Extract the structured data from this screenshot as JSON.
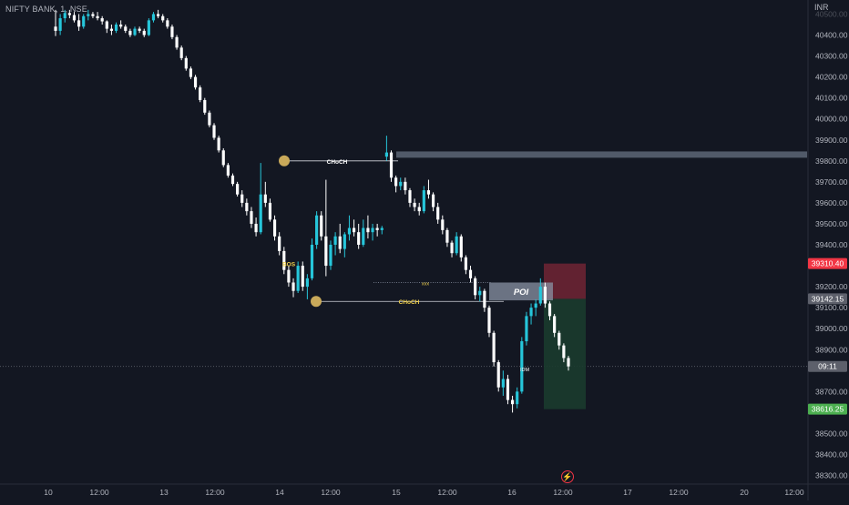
{
  "header": {
    "symbol": "NIFTY BANK, 1, NSE",
    "currency": "INR"
  },
  "colors": {
    "background": "#131722",
    "candle_up": "#26c6da",
    "candle_down": "#ffffff",
    "axis_text": "#b2b5be",
    "grid": "#2a2e39",
    "zone": "#5d6675",
    "stop_zone": "#6b2433",
    "target_zone": "#1b3b2e",
    "annotation_text": "#f0d04a",
    "pivot_marker": "#c9a95a",
    "price_red": "#f23645",
    "price_green": "#4caf50",
    "price_gray": "#5d606b"
  },
  "icons": {
    "bolt": "lightning-icon"
  },
  "chart_data": {
    "type": "candlestick",
    "title": "NIFTY BANK, 1, NSE",
    "ylabel": "INR",
    "ylim": [
      38250,
      40520
    ],
    "y_ticks": [
      40400,
      40300,
      40200,
      40100,
      40000,
      39900,
      39800,
      39700,
      39600,
      39500,
      39400,
      39200,
      39100,
      39000,
      38900,
      38700,
      38500,
      38400,
      38300
    ],
    "x_labels": [
      "10",
      "12:00",
      "13",
      "12:00",
      "14",
      "12:00",
      "15",
      "12:00",
      "16",
      "12:00",
      "17",
      "12:00",
      "20",
      "12:00"
    ],
    "grid": false,
    "candles": [
      {
        "o": 40440,
        "h": 40520,
        "l": 40395,
        "c": 40420
      },
      {
        "o": 40420,
        "h": 40500,
        "l": 40400,
        "c": 40480
      },
      {
        "o": 40480,
        "h": 40520,
        "l": 40460,
        "c": 40505
      },
      {
        "o": 40505,
        "h": 40520,
        "l": 40480,
        "c": 40495
      },
      {
        "o": 40495,
        "h": 40510,
        "l": 40460,
        "c": 40470
      },
      {
        "o": 40470,
        "h": 40500,
        "l": 40420,
        "c": 40440
      },
      {
        "o": 40440,
        "h": 40500,
        "l": 40430,
        "c": 40490
      },
      {
        "o": 40490,
        "h": 40520,
        "l": 40470,
        "c": 40500
      },
      {
        "o": 40500,
        "h": 40510,
        "l": 40480,
        "c": 40490
      },
      {
        "o": 40490,
        "h": 40510,
        "l": 40470,
        "c": 40480
      },
      {
        "o": 40480,
        "h": 40490,
        "l": 40450,
        "c": 40465
      },
      {
        "o": 40465,
        "h": 40470,
        "l": 40410,
        "c": 40430
      },
      {
        "o": 40430,
        "h": 40450,
        "l": 40400,
        "c": 40420
      },
      {
        "o": 40420,
        "h": 40460,
        "l": 40410,
        "c": 40450
      },
      {
        "o": 40450,
        "h": 40470,
        "l": 40430,
        "c": 40440
      },
      {
        "o": 40440,
        "h": 40450,
        "l": 40410,
        "c": 40420
      },
      {
        "o": 40420,
        "h": 40430,
        "l": 40390,
        "c": 40400
      },
      {
        "o": 40400,
        "h": 40440,
        "l": 40395,
        "c": 40430
      },
      {
        "o": 40430,
        "h": 40440,
        "l": 40410,
        "c": 40420
      },
      {
        "o": 40420,
        "h": 40430,
        "l": 40390,
        "c": 40400
      },
      {
        "o": 40400,
        "h": 40480,
        "l": 40395,
        "c": 40470
      },
      {
        "o": 40470,
        "h": 40510,
        "l": 40460,
        "c": 40500
      },
      {
        "o": 40500,
        "h": 40520,
        "l": 40480,
        "c": 40490
      },
      {
        "o": 40490,
        "h": 40500,
        "l": 40460,
        "c": 40470
      },
      {
        "o": 40470,
        "h": 40480,
        "l": 40430,
        "c": 40440
      },
      {
        "o": 40440,
        "h": 40450,
        "l": 40380,
        "c": 40390
      },
      {
        "o": 40390,
        "h": 40400,
        "l": 40330,
        "c": 40340
      },
      {
        "o": 40340,
        "h": 40350,
        "l": 40280,
        "c": 40290
      },
      {
        "o": 40290,
        "h": 40300,
        "l": 40230,
        "c": 40240
      },
      {
        "o": 40240,
        "h": 40250,
        "l": 40190,
        "c": 40200
      },
      {
        "o": 40200,
        "h": 40210,
        "l": 40140,
        "c": 40150
      },
      {
        "o": 40150,
        "h": 40160,
        "l": 40080,
        "c": 40090
      },
      {
        "o": 40090,
        "h": 40100,
        "l": 40020,
        "c": 40030
      },
      {
        "o": 40030,
        "h": 40040,
        "l": 39960,
        "c": 39970
      },
      {
        "o": 39970,
        "h": 39980,
        "l": 39900,
        "c": 39910
      },
      {
        "o": 39910,
        "h": 39920,
        "l": 39840,
        "c": 39850
      },
      {
        "o": 39850,
        "h": 39860,
        "l": 39770,
        "c": 39780
      },
      {
        "o": 39780,
        "h": 39790,
        "l": 39720,
        "c": 39730
      },
      {
        "o": 39730,
        "h": 39740,
        "l": 39680,
        "c": 39690
      },
      {
        "o": 39690,
        "h": 39700,
        "l": 39630,
        "c": 39640
      },
      {
        "o": 39640,
        "h": 39660,
        "l": 39580,
        "c": 39600
      },
      {
        "o": 39600,
        "h": 39620,
        "l": 39540,
        "c": 39560
      },
      {
        "o": 39560,
        "h": 39580,
        "l": 39480,
        "c": 39500
      },
      {
        "o": 39500,
        "h": 39530,
        "l": 39440,
        "c": 39460
      },
      {
        "o": 39460,
        "h": 39790,
        "l": 39450,
        "c": 39640
      },
      {
        "o": 39640,
        "h": 39700,
        "l": 39580,
        "c": 39600
      },
      {
        "o": 39600,
        "h": 39620,
        "l": 39510,
        "c": 39520
      },
      {
        "o": 39520,
        "h": 39540,
        "l": 39420,
        "c": 39440
      },
      {
        "o": 39440,
        "h": 39460,
        "l": 39350,
        "c": 39370
      },
      {
        "o": 39370,
        "h": 39390,
        "l": 39260,
        "c": 39280
      },
      {
        "o": 39280,
        "h": 39300,
        "l": 39200,
        "c": 39220
      },
      {
        "o": 39220,
        "h": 39240,
        "l": 39150,
        "c": 39180
      },
      {
        "o": 39180,
        "h": 39320,
        "l": 39170,
        "c": 39300
      },
      {
        "o": 39300,
        "h": 39320,
        "l": 39180,
        "c": 39200
      },
      {
        "o": 39200,
        "h": 39260,
        "l": 39140,
        "c": 39240
      },
      {
        "o": 39240,
        "h": 39430,
        "l": 39230,
        "c": 39400
      },
      {
        "o": 39400,
        "h": 39560,
        "l": 39380,
        "c": 39540
      },
      {
        "o": 39540,
        "h": 39560,
        "l": 39420,
        "c": 39440
      },
      {
        "o": 39440,
        "h": 39710,
        "l": 39250,
        "c": 39300
      },
      {
        "o": 39300,
        "h": 39420,
        "l": 39280,
        "c": 39400
      },
      {
        "o": 39400,
        "h": 39460,
        "l": 39350,
        "c": 39440
      },
      {
        "o": 39440,
        "h": 39500,
        "l": 39360,
        "c": 39380
      },
      {
        "o": 39380,
        "h": 39460,
        "l": 39340,
        "c": 39450
      },
      {
        "o": 39450,
        "h": 39540,
        "l": 39420,
        "c": 39480
      },
      {
        "o": 39480,
        "h": 39520,
        "l": 39440,
        "c": 39460
      },
      {
        "o": 39460,
        "h": 39500,
        "l": 39380,
        "c": 39400
      },
      {
        "o": 39400,
        "h": 39520,
        "l": 39390,
        "c": 39480
      },
      {
        "o": 39480,
        "h": 39540,
        "l": 39430,
        "c": 39460
      },
      {
        "o": 39460,
        "h": 39500,
        "l": 39420,
        "c": 39480
      },
      {
        "o": 39480,
        "h": 39500,
        "l": 39440,
        "c": 39470
      },
      {
        "o": 39470,
        "h": 39490,
        "l": 39450,
        "c": 39480
      },
      {
        "o": 39820,
        "h": 39920,
        "l": 39800,
        "c": 39840
      },
      {
        "o": 39840,
        "h": 39850,
        "l": 39700,
        "c": 39720
      },
      {
        "o": 39720,
        "h": 39730,
        "l": 39650,
        "c": 39680
      },
      {
        "o": 39680,
        "h": 39720,
        "l": 39660,
        "c": 39700
      },
      {
        "o": 39700,
        "h": 39720,
        "l": 39640,
        "c": 39660
      },
      {
        "o": 39660,
        "h": 39670,
        "l": 39580,
        "c": 39600
      },
      {
        "o": 39600,
        "h": 39620,
        "l": 39560,
        "c": 39580
      },
      {
        "o": 39580,
        "h": 39600,
        "l": 39540,
        "c": 39560
      },
      {
        "o": 39560,
        "h": 39680,
        "l": 39550,
        "c": 39660
      },
      {
        "o": 39660,
        "h": 39710,
        "l": 39620,
        "c": 39640
      },
      {
        "o": 39640,
        "h": 39650,
        "l": 39560,
        "c": 39580
      },
      {
        "o": 39580,
        "h": 39600,
        "l": 39500,
        "c": 39520
      },
      {
        "o": 39520,
        "h": 39540,
        "l": 39450,
        "c": 39470
      },
      {
        "o": 39470,
        "h": 39480,
        "l": 39390,
        "c": 39410
      },
      {
        "o": 39410,
        "h": 39420,
        "l": 39340,
        "c": 39360
      },
      {
        "o": 39360,
        "h": 39460,
        "l": 39350,
        "c": 39440
      },
      {
        "o": 39440,
        "h": 39450,
        "l": 39320,
        "c": 39340
      },
      {
        "o": 39340,
        "h": 39350,
        "l": 39260,
        "c": 39280
      },
      {
        "o": 39280,
        "h": 39300,
        "l": 39220,
        "c": 39240
      },
      {
        "o": 39240,
        "h": 39250,
        "l": 39140,
        "c": 39160
      },
      {
        "o": 39160,
        "h": 39200,
        "l": 39130,
        "c": 39180
      },
      {
        "o": 39180,
        "h": 39190,
        "l": 39080,
        "c": 39100
      },
      {
        "o": 39100,
        "h": 39110,
        "l": 38960,
        "c": 38980
      },
      {
        "o": 38980,
        "h": 38990,
        "l": 38820,
        "c": 38840
      },
      {
        "o": 38840,
        "h": 38850,
        "l": 38700,
        "c": 38720
      },
      {
        "o": 38720,
        "h": 38800,
        "l": 38680,
        "c": 38760
      },
      {
        "o": 38760,
        "h": 38780,
        "l": 38640,
        "c": 38660
      },
      {
        "o": 38660,
        "h": 38680,
        "l": 38600,
        "c": 38640
      },
      {
        "o": 38640,
        "h": 38720,
        "l": 38620,
        "c": 38700
      },
      {
        "o": 38700,
        "h": 38960,
        "l": 38690,
        "c": 38940
      },
      {
        "o": 38940,
        "h": 39080,
        "l": 38920,
        "c": 39060
      },
      {
        "o": 39060,
        "h": 39120,
        "l": 39020,
        "c": 39100
      },
      {
        "o": 39100,
        "h": 39140,
        "l": 39060,
        "c": 39120
      },
      {
        "o": 39120,
        "h": 39240,
        "l": 39110,
        "c": 39200
      },
      {
        "o": 39200,
        "h": 39220,
        "l": 39100,
        "c": 39120
      },
      {
        "o": 39120,
        "h": 39130,
        "l": 39040,
        "c": 39060
      },
      {
        "o": 39060,
        "h": 39070,
        "l": 38960,
        "c": 38980
      },
      {
        "o": 38980,
        "h": 38990,
        "l": 38900,
        "c": 38920
      },
      {
        "o": 38920,
        "h": 38930,
        "l": 38840,
        "c": 38860
      },
      {
        "o": 38860,
        "h": 38870,
        "l": 38800,
        "c": 38820
      }
    ],
    "price_labels": [
      {
        "name": "stop-loss-price",
        "text": "39310.40",
        "value": 39310.4,
        "color": "#f23645"
      },
      {
        "name": "entry-price",
        "text": "39142.15",
        "value": 39142.15,
        "color": "#5d606b"
      },
      {
        "name": "countdown",
        "text": "09:11",
        "value": 38820,
        "color": "#5d606b"
      },
      {
        "name": "target-price",
        "text": "38616.25",
        "value": 38616.25,
        "color": "#4caf50"
      }
    ],
    "annotations": {
      "choch_top": {
        "text": "CHoCH",
        "price": 39800
      },
      "choch_bottom": {
        "text": "CHoCH",
        "price": 39130
      },
      "bos": {
        "text": "BOS",
        "price": 39310
      },
      "xxx": {
        "text": "xxx",
        "price": 39220
      },
      "poi": {
        "text": "POI",
        "price_high": 39220,
        "price_low": 39135
      },
      "idm": {
        "text": "IDM",
        "price": 38810
      },
      "supply_zone": {
        "price_high": 39845,
        "price_low": 39815
      },
      "stop_zone": {
        "price_high": 39310.4,
        "price_low": 39142.15
      },
      "target_zone": {
        "price_high": 39142.15,
        "price_low": 38616.25
      }
    }
  }
}
